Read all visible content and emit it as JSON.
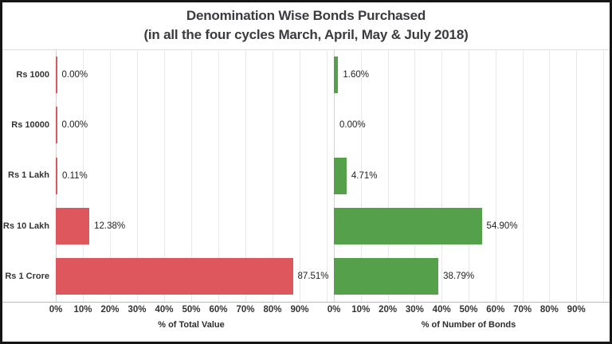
{
  "title": {
    "line1": "Denomination Wise Bonds Purchased",
    "line2": "(in all the four cycles March, April, May & July 2018)"
  },
  "chart_data": [
    {
      "type": "bar",
      "orientation": "horizontal",
      "xlabel": "% of Total Value",
      "categories": [
        "Rs 1000",
        "Rs 10000",
        "Rs 1 Lakh",
        "Rs 10 Lakh",
        "Rs 1 Crore"
      ],
      "values": [
        0.0,
        0.0,
        0.11,
        12.38,
        87.51
      ],
      "data_labels": [
        "0.00%",
        "0.00%",
        "0.11%",
        "12.38%",
        "87.51%"
      ],
      "xticks": [
        "0%",
        "10%",
        "20%",
        "30%",
        "40%",
        "50%",
        "60%",
        "70%",
        "80%",
        "90%"
      ],
      "xlim": [
        0,
        100
      ],
      "grid": true,
      "legend": "none",
      "bar_color": "#DE575C",
      "zero_bar_hairline": true
    },
    {
      "type": "bar",
      "orientation": "horizontal",
      "xlabel": "% of Number of Bonds",
      "categories": [
        "Rs 1000",
        "Rs 10000",
        "Rs 1 Lakh",
        "Rs 10 Lakh",
        "Rs 1 Crore"
      ],
      "values": [
        1.6,
        0.0,
        4.71,
        54.9,
        38.79
      ],
      "data_labels": [
        "1.60%",
        "0.00%",
        "4.71%",
        "54.90%",
        "38.79%"
      ],
      "xticks": [
        "0%",
        "10%",
        "20%",
        "30%",
        "40%",
        "50%",
        "60%",
        "70%",
        "80%",
        "90%"
      ],
      "xlim": [
        0,
        100
      ],
      "grid": true,
      "legend": "none",
      "bar_color": "#55A04B",
      "zero_bar_hairline": false
    }
  ],
  "colors": {
    "red_bar": "#DE575C",
    "green_bar": "#55A04B",
    "gridline": "#e9e9e9",
    "axis_line": "#d4d4d4",
    "baseline": "#b9b9b9",
    "text": "#333333",
    "frame_border": "#151515",
    "background": "#ffffff"
  }
}
